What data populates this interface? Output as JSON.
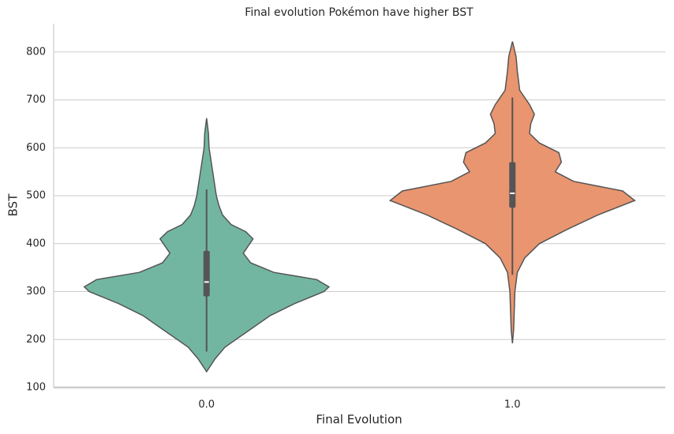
{
  "chart_data": {
    "type": "violin",
    "title": "Final evolution Pokémon have higher BST",
    "xlabel": "Final Evolution",
    "ylabel": "BST",
    "categories": [
      "0.0",
      "1.0"
    ],
    "ylim": [
      100,
      859
    ],
    "yticks": [
      100,
      200,
      300,
      400,
      500,
      600,
      700,
      800
    ],
    "grid": true,
    "series": [
      {
        "color": "#72b6a1",
        "density": {
          "y": [
            133,
            160,
            184,
            200,
            225,
            250,
            275,
            300,
            310,
            325,
            340,
            360,
            380,
            395,
            410,
            425,
            440,
            460,
            480,
            500,
            550,
            600,
            630,
            662
          ],
          "width": [
            0,
            0.07,
            0.15,
            0.24,
            0.38,
            0.52,
            0.72,
            0.96,
            1.0,
            0.9,
            0.55,
            0.36,
            0.3,
            0.34,
            0.38,
            0.32,
            0.2,
            0.13,
            0.1,
            0.08,
            0.05,
            0.02,
            0.015,
            0
          ]
        },
        "box": {
          "whisker_low": 175,
          "q1": 290,
          "median": 320,
          "q3": 385,
          "whisker_high": 513
        }
      },
      {
        "color": "#e9956f",
        "density": {
          "y": [
            192,
            220,
            260,
            300,
            340,
            370,
            400,
            430,
            460,
            490,
            510,
            530,
            550,
            570,
            590,
            610,
            630,
            650,
            670,
            690,
            720,
            760,
            790,
            822
          ],
          "width": [
            0,
            0.01,
            0.015,
            0.02,
            0.04,
            0.1,
            0.22,
            0.45,
            0.7,
            1.0,
            0.9,
            0.5,
            0.35,
            0.4,
            0.38,
            0.22,
            0.14,
            0.15,
            0.18,
            0.14,
            0.06,
            0.04,
            0.03,
            0
          ]
        },
        "box": {
          "whisker_low": 335,
          "q1": 475,
          "median": 505,
          "q3": 570,
          "whisker_high": 705
        }
      }
    ]
  }
}
